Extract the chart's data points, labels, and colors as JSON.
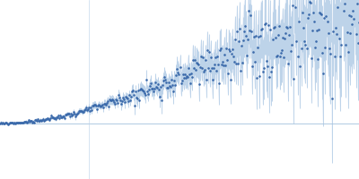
{
  "bg_color": "#ffffff",
  "line_color": "#b8d0e8",
  "dot_color": "#3a69aa",
  "error_color": "#b8d0e8",
  "fill_color": "#c8d8ee",
  "hline_color": "#a8c4de",
  "vline_color": "#b8d0e8",
  "figsize": [
    4.0,
    2.0
  ],
  "dpi": 100
}
